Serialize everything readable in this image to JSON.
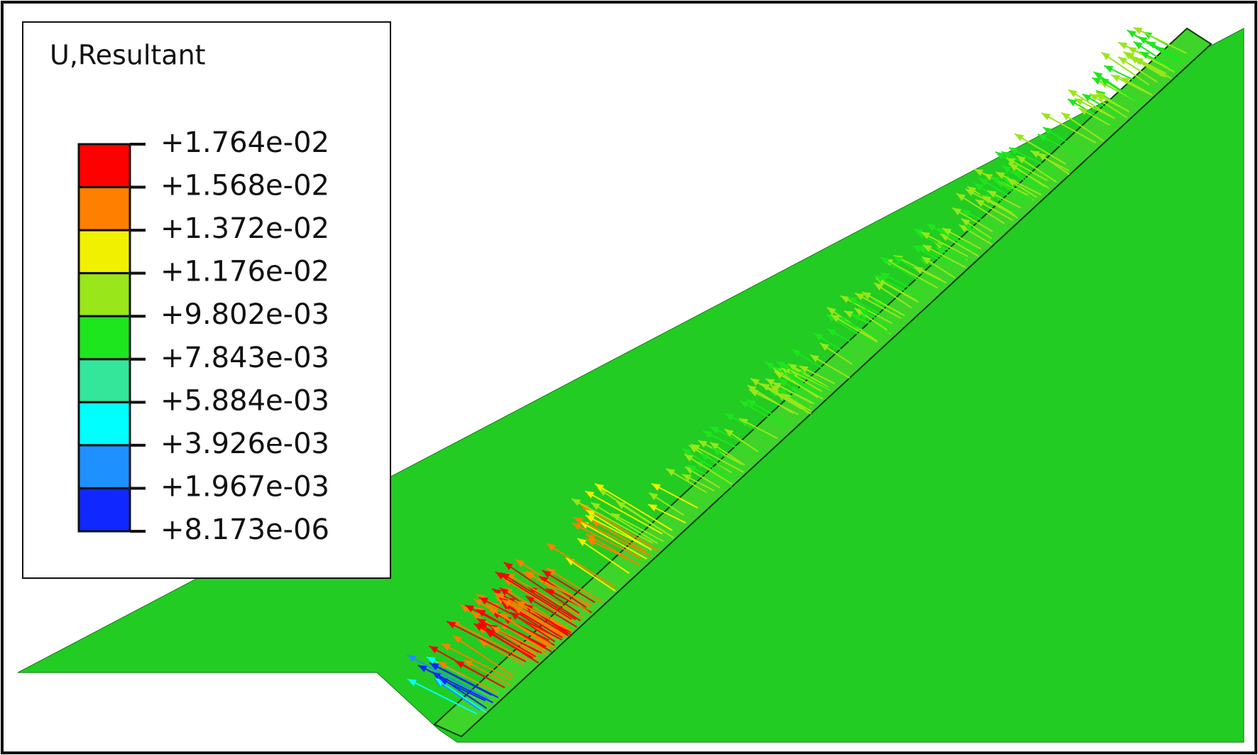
{
  "legend": {
    "title": "U,Resultant",
    "levels": [
      "+1.764e-02",
      "+1.568e-02",
      "+1.372e-02",
      "+1.176e-02",
      "+9.802e-03",
      "+7.843e-03",
      "+5.884e-03",
      "+3.926e-03",
      "+1.967e-03",
      "+8.173e-06"
    ],
    "colors": [
      "#ff0000",
      "#ff8000",
      "#f0f000",
      "#99e61a",
      "#1ee61e",
      "#33e69a",
      "#00ffff",
      "#1e90ff",
      "#1028ff"
    ]
  }
}
